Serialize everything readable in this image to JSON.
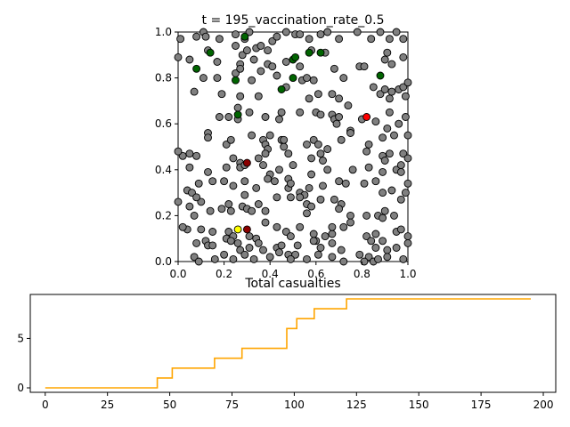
{
  "chart_data": [
    {
      "type": "scatter",
      "title": "t = 195_vaccination_rate_0.5",
      "xlabel": "",
      "ylabel": "",
      "xlim": [
        0,
        1
      ],
      "ylim": [
        0,
        1
      ],
      "xticks": [
        "0.0",
        "0.2",
        "0.4",
        "0.6",
        "0.8",
        "1.0"
      ],
      "yticks": [
        "0.0",
        "0.2",
        "0.4",
        "0.6",
        "0.8",
        "1.0"
      ],
      "grid": false,
      "colors": {
        "healthy": "#808080",
        "recovered": "#006400",
        "infected": "#ff0000",
        "dead": "#8b0000",
        "other": "#ffff00"
      },
      "points": [
        [
          0.01,
          0.97
        ],
        [
          0.08,
          0.98
        ],
        [
          0.11,
          1.0
        ],
        [
          0.12,
          0.98
        ],
        [
          0.18,
          0.97
        ],
        [
          0.25,
          0.99
        ],
        [
          0.29,
          0.97
        ],
        [
          0.31,
          1.0
        ],
        [
          0.34,
          0.93
        ],
        [
          0.36,
          0.94
        ],
        [
          0.39,
          0.92
        ],
        [
          0.41,
          0.96
        ],
        [
          0.43,
          0.98
        ],
        [
          0.47,
          1.0
        ],
        [
          0.51,
          0.99
        ],
        [
          0.53,
          0.99
        ],
        [
          0.57,
          0.97
        ],
        [
          0.62,
          0.99
        ],
        [
          0.65,
          1.0
        ],
        [
          0.7,
          0.97
        ],
        [
          0.78,
          1.0
        ],
        [
          0.84,
          0.97
        ],
        [
          0.88,
          1.0
        ],
        [
          0.92,
          0.97
        ],
        [
          0.95,
          1.0
        ],
        [
          0.98,
          0.97
        ],
        [
          0.0,
          0.89
        ],
        [
          0.05,
          0.88
        ],
        [
          0.13,
          0.92
        ],
        [
          0.17,
          0.87
        ],
        [
          0.25,
          0.94
        ],
        [
          0.27,
          0.86
        ],
        [
          0.28,
          0.9
        ],
        [
          0.3,
          0.92
        ],
        [
          0.33,
          0.88
        ],
        [
          0.36,
          0.83
        ],
        [
          0.39,
          0.86
        ],
        [
          0.41,
          0.85
        ],
        [
          0.47,
          0.87
        ],
        [
          0.53,
          0.85
        ],
        [
          0.58,
          0.92
        ],
        [
          0.64,
          0.91
        ],
        [
          0.68,
          0.84
        ],
        [
          0.72,
          0.8
        ],
        [
          0.79,
          0.85
        ],
        [
          0.81,
          0.85
        ],
        [
          0.9,
          0.88
        ],
        [
          0.91,
          0.91
        ],
        [
          0.93,
          0.86
        ],
        [
          0.98,
          0.89
        ],
        [
          0.07,
          0.74
        ],
        [
          0.11,
          0.8
        ],
        [
          0.17,
          0.8
        ],
        [
          0.19,
          0.73
        ],
        [
          0.25,
          0.82
        ],
        [
          0.27,
          0.84
        ],
        [
          0.27,
          0.72
        ],
        [
          0.32,
          0.79
        ],
        [
          0.35,
          0.72
        ],
        [
          0.43,
          0.81
        ],
        [
          0.47,
          0.76
        ],
        [
          0.54,
          0.79
        ],
        [
          0.56,
          0.8
        ],
        [
          0.57,
          0.71
        ],
        [
          0.59,
          0.79
        ],
        [
          0.61,
          0.73
        ],
        [
          0.67,
          0.73
        ],
        [
          0.7,
          0.71
        ],
        [
          0.74,
          0.68
        ],
        [
          0.85,
          0.76
        ],
        [
          0.88,
          0.73
        ],
        [
          0.9,
          0.75
        ],
        [
          0.93,
          0.74
        ],
        [
          0.96,
          0.75
        ],
        [
          0.98,
          0.76
        ],
        [
          1.0,
          0.78
        ],
        [
          0.99,
          0.72
        ],
        [
          0.92,
          0.71
        ],
        [
          0.18,
          0.63
        ],
        [
          0.22,
          0.63
        ],
        [
          0.26,
          0.67
        ],
        [
          0.26,
          0.62
        ],
        [
          0.31,
          0.65
        ],
        [
          0.38,
          0.63
        ],
        [
          0.44,
          0.62
        ],
        [
          0.45,
          0.65
        ],
        [
          0.53,
          0.65
        ],
        [
          0.6,
          0.65
        ],
        [
          0.62,
          0.64
        ],
        [
          0.67,
          0.64
        ],
        [
          0.68,
          0.62
        ],
        [
          0.7,
          0.63
        ],
        [
          0.69,
          0.6
        ],
        [
          0.75,
          0.57
        ],
        [
          0.8,
          0.62
        ],
        [
          0.86,
          0.61
        ],
        [
          0.89,
          0.54
        ],
        [
          0.91,
          0.58
        ],
        [
          0.92,
          0.65
        ],
        [
          0.94,
          0.55
        ],
        [
          0.96,
          0.6
        ],
        [
          0.99,
          0.63
        ],
        [
          1.0,
          0.55
        ],
        [
          0.13,
          0.56
        ],
        [
          0.13,
          0.54
        ],
        [
          0.21,
          0.51
        ],
        [
          0.23,
          0.53
        ],
        [
          0.32,
          0.55
        ],
        [
          0.37,
          0.53
        ],
        [
          0.38,
          0.51
        ],
        [
          0.39,
          0.49
        ],
        [
          0.4,
          0.55
        ],
        [
          0.45,
          0.53
        ],
        [
          0.46,
          0.5
        ],
        [
          0.46,
          0.53
        ],
        [
          0.48,
          0.47
        ],
        [
          0.56,
          0.51
        ],
        [
          0.59,
          0.53
        ],
        [
          0.61,
          0.51
        ],
        [
          0.62,
          0.47
        ],
        [
          0.65,
          0.49
        ],
        [
          0.71,
          0.53
        ],
        [
          0.75,
          0.56
        ],
        [
          0.82,
          0.48
        ],
        [
          0.83,
          0.51
        ],
        [
          0.89,
          0.46
        ],
        [
          0.9,
          0.44
        ],
        [
          0.92,
          0.47
        ],
        [
          0.98,
          0.47
        ],
        [
          1.0,
          0.45
        ],
        [
          0.02,
          0.46
        ],
        [
          0.05,
          0.47
        ],
        [
          0.08,
          0.46
        ],
        [
          0.05,
          0.41
        ],
        [
          0.13,
          0.39
        ],
        [
          0.21,
          0.41
        ],
        [
          0.24,
          0.45
        ],
        [
          0.27,
          0.43
        ],
        [
          0.27,
          0.41
        ],
        [
          0.29,
          0.42
        ],
        [
          0.35,
          0.45
        ],
        [
          0.37,
          0.42
        ],
        [
          0.38,
          0.47
        ],
        [
          0.4,
          0.38
        ],
        [
          0.44,
          0.4
        ],
        [
          0.48,
          0.36
        ],
        [
          0.5,
          0.42
        ],
        [
          0.58,
          0.45
        ],
        [
          0.63,
          0.44
        ],
        [
          0.58,
          0.38
        ],
        [
          0.65,
          0.4
        ],
        [
          0.76,
          0.4
        ],
        [
          0.83,
          0.41
        ],
        [
          0.86,
          0.35
        ],
        [
          0.89,
          0.39
        ],
        [
          0.95,
          0.4
        ],
        [
          0.97,
          0.42
        ],
        [
          0.97,
          0.39
        ],
        [
          1.0,
          0.34
        ],
        [
          0.99,
          0.3
        ],
        [
          0.04,
          0.31
        ],
        [
          0.06,
          0.3
        ],
        [
          0.09,
          0.34
        ],
        [
          0.15,
          0.35
        ],
        [
          0.2,
          0.35
        ],
        [
          0.24,
          0.33
        ],
        [
          0.29,
          0.35
        ],
        [
          0.29,
          0.29
        ],
        [
          0.34,
          0.32
        ],
        [
          0.39,
          0.36
        ],
        [
          0.42,
          0.35
        ],
        [
          0.48,
          0.32
        ],
        [
          0.49,
          0.34
        ],
        [
          0.53,
          0.3
        ],
        [
          0.55,
          0.29
        ],
        [
          0.57,
          0.32
        ],
        [
          0.63,
          0.33
        ],
        [
          0.7,
          0.35
        ],
        [
          0.73,
          0.34
        ],
        [
          0.81,
          0.34
        ],
        [
          0.89,
          0.3
        ],
        [
          0.93,
          0.31
        ],
        [
          0.97,
          0.27
        ],
        [
          0.05,
          0.24
        ],
        [
          0.1,
          0.26
        ],
        [
          0.14,
          0.22
        ],
        [
          0.19,
          0.23
        ],
        [
          0.22,
          0.25
        ],
        [
          0.23,
          0.22
        ],
        [
          0.28,
          0.24
        ],
        [
          0.3,
          0.23
        ],
        [
          0.32,
          0.22
        ],
        [
          0.35,
          0.25
        ],
        [
          0.38,
          0.22
        ],
        [
          0.43,
          0.28
        ],
        [
          0.49,
          0.28
        ],
        [
          0.53,
          0.28
        ],
        [
          0.56,
          0.25
        ],
        [
          0.58,
          0.24
        ],
        [
          0.56,
          0.21
        ],
        [
          0.62,
          0.27
        ],
        [
          0.68,
          0.27
        ],
        [
          0.71,
          0.25
        ],
        [
          0.7,
          0.23
        ],
        [
          0.75,
          0.2
        ],
        [
          0.82,
          0.2
        ],
        [
          0.87,
          0.2
        ],
        [
          0.89,
          0.19
        ],
        [
          0.9,
          0.22
        ],
        [
          0.94,
          0.2
        ],
        [
          0.0,
          0.26
        ],
        [
          0.07,
          0.2
        ],
        [
          0.04,
          0.14
        ],
        [
          0.1,
          0.14
        ],
        [
          0.15,
          0.13
        ],
        [
          0.22,
          0.13
        ],
        [
          0.24,
          0.11
        ],
        [
          0.31,
          0.11
        ],
        [
          0.34,
          0.1
        ],
        [
          0.38,
          0.17
        ],
        [
          0.43,
          0.15
        ],
        [
          0.47,
          0.13
        ],
        [
          0.49,
          0.11
        ],
        [
          0.53,
          0.15
        ],
        [
          0.59,
          0.12
        ],
        [
          0.6,
          0.09
        ],
        [
          0.64,
          0.11
        ],
        [
          0.67,
          0.12
        ],
        [
          0.67,
          0.15
        ],
        [
          0.72,
          0.15
        ],
        [
          0.75,
          0.17
        ],
        [
          0.82,
          0.11
        ],
        [
          0.84,
          0.09
        ],
        [
          0.86,
          0.12
        ],
        [
          0.89,
          0.09
        ],
        [
          0.95,
          0.13
        ],
        [
          0.97,
          0.14
        ],
        [
          1.0,
          0.11
        ],
        [
          1.0,
          0.08
        ],
        [
          0.08,
          0.08
        ],
        [
          0.12,
          0.09
        ],
        [
          0.13,
          0.07
        ],
        [
          0.15,
          0.07
        ],
        [
          0.21,
          0.1
        ],
        [
          0.23,
          0.09
        ],
        [
          0.26,
          0.08
        ],
        [
          0.27,
          0.05
        ],
        [
          0.31,
          0.06
        ],
        [
          0.35,
          0.08
        ],
        [
          0.37,
          0.05
        ],
        [
          0.43,
          0.06
        ],
        [
          0.45,
          0.07
        ],
        [
          0.48,
          0.03
        ],
        [
          0.51,
          0.03
        ],
        [
          0.52,
          0.07
        ],
        [
          0.59,
          0.09
        ],
        [
          0.62,
          0.06
        ],
        [
          0.67,
          0.08
        ],
        [
          0.71,
          0.05
        ],
        [
          0.79,
          0.03
        ],
        [
          0.83,
          0.02
        ],
        [
          0.86,
          0.06
        ],
        [
          0.91,
          0.05
        ],
        [
          0.95,
          0.06
        ],
        [
          0.02,
          0.15
        ],
        [
          0.07,
          0.02
        ],
        [
          0.09,
          0.0
        ],
        [
          0.16,
          0.01
        ],
        [
          0.2,
          0.03
        ],
        [
          0.24,
          0.01
        ],
        [
          0.29,
          0.03
        ],
        [
          0.33,
          0.01
        ],
        [
          0.4,
          0.02
        ],
        [
          0.44,
          0.04
        ],
        [
          0.49,
          0.01
        ],
        [
          0.56,
          0.01
        ],
        [
          0.61,
          0.03
        ],
        [
          0.67,
          0.02
        ],
        [
          0.72,
          0.0
        ],
        [
          0.81,
          0.0
        ],
        [
          0.85,
          0.0
        ],
        [
          0.87,
          0.01
        ],
        [
          0.91,
          0.02
        ],
        [
          0.98,
          0.01
        ],
        [
          0.0,
          0.48
        ],
        [
          0.08,
          0.28
        ]
      ],
      "recovered": [
        [
          0.29,
          0.98
        ],
        [
          0.14,
          0.91
        ],
        [
          0.08,
          0.84
        ],
        [
          0.57,
          0.91
        ],
        [
          0.62,
          0.91
        ],
        [
          0.5,
          0.88
        ],
        [
          0.51,
          0.89
        ],
        [
          0.88,
          0.81
        ],
        [
          0.25,
          0.79
        ],
        [
          0.5,
          0.8
        ],
        [
          0.45,
          0.75
        ],
        [
          0.26,
          0.64
        ]
      ],
      "infected": [
        [
          0.82,
          0.63
        ]
      ],
      "dead": [
        [
          0.3,
          0.43
        ],
        [
          0.3,
          0.14
        ]
      ],
      "other": [
        [
          0.26,
          0.14
        ]
      ]
    },
    {
      "type": "line",
      "title": "Total casualties",
      "xlabel": "",
      "ylabel": "",
      "xlim": [
        -6,
        205
      ],
      "ylim": [
        -0.45,
        9.45
      ],
      "xticks": [
        0,
        25,
        50,
        75,
        100,
        125,
        150,
        175,
        200
      ],
      "yticks": [
        0,
        5
      ],
      "grid": false,
      "color": "#ffa500",
      "x": [
        0,
        45,
        45,
        51,
        51,
        68,
        68,
        79,
        79,
        97,
        97,
        101,
        101,
        108,
        108,
        121,
        121,
        195
      ],
      "y": [
        0,
        0,
        1,
        1,
        2,
        2,
        3,
        3,
        4,
        4,
        6,
        6,
        7,
        7,
        8,
        8,
        9,
        9
      ]
    }
  ]
}
